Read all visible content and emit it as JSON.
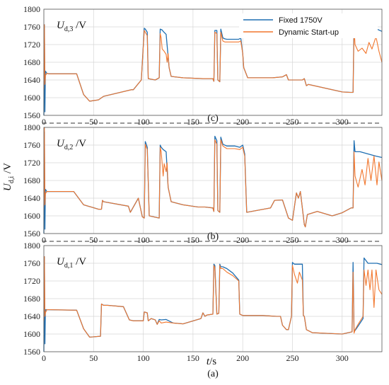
{
  "figure": {
    "ylabel_main": "U",
    "ylabel_sub": "d,i",
    "ylabel_unit": " /V",
    "xlabel_main": "t",
    "xlabel_unit": "/s"
  },
  "legend": [
    {
      "label": "Fixed 1750V",
      "color": "#1f6fb2"
    },
    {
      "label": "Dynamic Start-up",
      "color": "#f2772e"
    }
  ],
  "chart_data": [
    {
      "type": "line",
      "caption": "(c)",
      "title_main": "U",
      "title_sub": "d,3",
      "title_unit": " /V",
      "xlim": [
        0,
        340
      ],
      "ylim": [
        1560,
        1800
      ],
      "xticks": [
        0,
        50,
        100,
        150,
        200,
        250,
        300
      ],
      "yticks": [
        1560,
        1600,
        1640,
        1680,
        1720,
        1760,
        1800
      ],
      "grid": true,
      "series": [
        {
          "name": "Fixed 1750V",
          "color": "#1f6fb2",
          "x": [
            0,
            0.6,
            1.1,
            1.6,
            3,
            5,
            33,
            40,
            46,
            55,
            60,
            88,
            90,
            98,
            101,
            102,
            104,
            105,
            112,
            116,
            117,
            119,
            120,
            123,
            126,
            128,
            140,
            160,
            170,
            171,
            172,
            174,
            175,
            177,
            178,
            180,
            182,
            184,
            190,
            196,
            198,
            200,
            201,
            205,
            220,
            230,
            240,
            244,
            246,
            260,
            262,
            264,
            266,
            300,
            308,
            311,
            312,
            313,
            318,
            328,
            332,
            340
          ],
          "y": [
            1560,
            1765,
            1568,
            1660,
            1655,
            1654,
            1654,
            1607,
            1592,
            1595,
            1603,
            1618,
            1618,
            1640,
            1757,
            1755,
            1748,
            1643,
            1640,
            1645,
            1755,
            1753,
            1750,
            1743,
            1668,
            1648,
            1645,
            1643,
            1643,
            1637,
            1752,
            1752,
            1640,
            1636,
            1755,
            1735,
            1733,
            1732,
            1732,
            1732,
            1735,
            1700,
            1668,
            1645,
            1645,
            1645,
            1647,
            1652,
            1640,
            1640,
            1643,
            1627,
            1630,
            1613,
            1612,
            1612,
            1775,
            1760,
            1758,
            1758,
            1758,
            1750
          ]
        },
        {
          "name": "Dynamic Start-up",
          "color": "#f2772e",
          "x": [
            0,
            0.6,
            1.1,
            1.6,
            3,
            5,
            33,
            40,
            46,
            55,
            60,
            88,
            90,
            98,
            101,
            102,
            104,
            105,
            112,
            116,
            117,
            118,
            119,
            121,
            123,
            124,
            125,
            126,
            128,
            140,
            160,
            170,
            171,
            172,
            174,
            175,
            177,
            178,
            180,
            182,
            184,
            190,
            196,
            198,
            200,
            201,
            205,
            220,
            230,
            240,
            244,
            246,
            260,
            262,
            264,
            266,
            300,
            308,
            311,
            312,
            313,
            316,
            320,
            324,
            327,
            330,
            334,
            337,
            340
          ],
          "y": [
            1620,
            1765,
            1630,
            1650,
            1655,
            1654,
            1654,
            1607,
            1592,
            1595,
            1603,
            1618,
            1618,
            1640,
            1752,
            1748,
            1740,
            1643,
            1640,
            1645,
            1745,
            1735,
            1710,
            1705,
            1698,
            1680,
            1700,
            1668,
            1648,
            1645,
            1643,
            1643,
            1637,
            1748,
            1745,
            1640,
            1636,
            1748,
            1728,
            1726,
            1726,
            1726,
            1726,
            1728,
            1700,
            1668,
            1645,
            1645,
            1645,
            1647,
            1652,
            1640,
            1640,
            1643,
            1627,
            1630,
            1613,
            1612,
            1612,
            1760,
            1720,
            1705,
            1712,
            1700,
            1725,
            1710,
            1738,
            1705,
            1680
          ]
        }
      ]
    },
    {
      "type": "line",
      "caption": "(b)",
      "title_main": "U",
      "title_sub": "d,2",
      "title_unit": " /V",
      "xlim": [
        0,
        340
      ],
      "ylim": [
        1560,
        1800
      ],
      "xticks": [
        0,
        50,
        100,
        150,
        200,
        250,
        300
      ],
      "yticks": [
        1560,
        1600,
        1640,
        1680,
        1720,
        1760,
        1800
      ],
      "grid": true,
      "series": [
        {
          "name": "Fixed 1750V",
          "color": "#1f6fb2",
          "x": [
            0,
            0.6,
            1.1,
            1.6,
            3,
            5,
            30,
            40,
            55,
            58,
            59,
            60,
            85,
            87,
            95,
            99,
            101,
            102,
            103,
            104,
            106,
            116,
            117,
            118,
            120,
            123,
            125,
            128,
            140,
            155,
            162,
            170,
            171,
            172,
            174,
            175,
            177,
            178,
            180,
            184,
            192,
            197,
            200,
            202,
            204,
            228,
            232,
            240,
            246,
            250,
            254,
            256,
            258,
            262,
            263,
            265,
            275,
            290,
            300,
            309,
            311,
            312,
            313,
            318,
            326,
            334,
            340
          ],
          "y": [
            1560,
            1790,
            1570,
            1660,
            1655,
            1655,
            1655,
            1625,
            1615,
            1615,
            1635,
            1632,
            1622,
            1608,
            1640,
            1598,
            1595,
            1768,
            1762,
            1755,
            1600,
            1595,
            1760,
            1755,
            1750,
            1745,
            1665,
            1632,
            1625,
            1620,
            1620,
            1618,
            1610,
            1780,
            1770,
            1612,
            1608,
            1778,
            1762,
            1758,
            1758,
            1755,
            1760,
            1740,
            1608,
            1618,
            1635,
            1636,
            1595,
            1590,
            1652,
            1640,
            1655,
            1580,
            1575,
            1603,
            1610,
            1600,
            1607,
            1618,
            1618,
            1770,
            1745,
            1745,
            1740,
            1735,
            1732
          ]
        },
        {
          "name": "Dynamic Start-up",
          "color": "#f2772e",
          "x": [
            0,
            0.6,
            1.1,
            1.6,
            3,
            5,
            30,
            40,
            55,
            58,
            59,
            60,
            85,
            87,
            95,
            99,
            101,
            102,
            103,
            104,
            106,
            116,
            117,
            118,
            120,
            121,
            123,
            124,
            125,
            128,
            140,
            155,
            162,
            170,
            171,
            172,
            174,
            175,
            177,
            178,
            180,
            184,
            192,
            197,
            200,
            202,
            204,
            228,
            232,
            240,
            246,
            250,
            254,
            256,
            258,
            262,
            263,
            265,
            275,
            290,
            300,
            309,
            311,
            312,
            313,
            316,
            320,
            323,
            326,
            329,
            332,
            335,
            337,
            340
          ],
          "y": [
            1620,
            1800,
            1625,
            1650,
            1655,
            1655,
            1655,
            1625,
            1615,
            1615,
            1635,
            1632,
            1622,
            1608,
            1640,
            1598,
            1595,
            1762,
            1755,
            1750,
            1600,
            1595,
            1755,
            1745,
            1690,
            1718,
            1700,
            1720,
            1665,
            1632,
            1625,
            1620,
            1620,
            1618,
            1610,
            1772,
            1762,
            1612,
            1608,
            1772,
            1758,
            1752,
            1752,
            1750,
            1755,
            1735,
            1608,
            1618,
            1635,
            1636,
            1595,
            1590,
            1652,
            1640,
            1655,
            1580,
            1575,
            1603,
            1610,
            1600,
            1607,
            1618,
            1618,
            1745,
            1690,
            1665,
            1705,
            1670,
            1730,
            1680,
            1735,
            1670,
            1722,
            1680
          ]
        }
      ]
    },
    {
      "type": "line",
      "caption": "(a)",
      "title_main": "U",
      "title_sub": "d,1",
      "title_unit": " /V",
      "xlim": [
        0,
        340
      ],
      "ylim": [
        1560,
        1800
      ],
      "xticks": [
        0,
        50,
        100,
        150,
        200,
        250,
        300,
        350
      ],
      "xtick_labels": [
        "0",
        "50",
        "100",
        "150",
        "200",
        "250",
        "300",
        ""
      ],
      "yticks": [
        1560,
        1600,
        1640,
        1680,
        1720,
        1760,
        1800
      ],
      "grid": true,
      "series": [
        {
          "name": "Fixed 1750V",
          "color": "#1f6fb2",
          "x": [
            0,
            0.6,
            1.1,
            1.6,
            3,
            5,
            33,
            40,
            46,
            57,
            58,
            60,
            64,
            80,
            86,
            90,
            100,
            101,
            104,
            105,
            108,
            112,
            114,
            116,
            118,
            123,
            130,
            140,
            158,
            160,
            162,
            164,
            170,
            171,
            172,
            174,
            176,
            177,
            178,
            180,
            184,
            190,
            196,
            197,
            200,
            220,
            234,
            238,
            240,
            244,
            246,
            249,
            250,
            252,
            260,
            261,
            262,
            264,
            270,
            300,
            310,
            311,
            312,
            313,
            316,
            321,
            322,
            326,
            335,
            340
          ],
          "y": [
            1560,
            1775,
            1578,
            1655,
            1655,
            1655,
            1654,
            1612,
            1593,
            1595,
            1668,
            1665,
            1665,
            1662,
            1632,
            1630,
            1630,
            1650,
            1648,
            1630,
            1635,
            1632,
            1622,
            1633,
            1632,
            1633,
            1625,
            1623,
            1635,
            1648,
            1640,
            1643,
            1645,
            1758,
            1755,
            1645,
            1647,
            1758,
            1752,
            1752,
            1748,
            1738,
            1722,
            1645,
            1642,
            1642,
            1640,
            1640,
            1620,
            1610,
            1610,
            1640,
            1762,
            1758,
            1758,
            1642,
            1640,
            1610,
            1603,
            1600,
            1605,
            1762,
            1605,
            1608,
            1618,
            1635,
            1772,
            1760,
            1760,
            1757
          ]
        },
        {
          "name": "Dynamic Start-up",
          "color": "#f2772e",
          "x": [
            0,
            0.6,
            1.1,
            1.6,
            3,
            5,
            33,
            40,
            46,
            57,
            58,
            60,
            64,
            80,
            86,
            90,
            100,
            101,
            104,
            105,
            108,
            112,
            114,
            116,
            118,
            123,
            130,
            140,
            158,
            160,
            162,
            164,
            170,
            171,
            172,
            174,
            176,
            177,
            178,
            180,
            184,
            190,
            196,
            197,
            200,
            220,
            234,
            238,
            240,
            244,
            246,
            249,
            250,
            252,
            255,
            257,
            260,
            261,
            262,
            264,
            270,
            300,
            310,
            311,
            312,
            313,
            316,
            321,
            322,
            324,
            326,
            328,
            330,
            332,
            334,
            337,
            340
          ],
          "y": [
            1630,
            1775,
            1640,
            1648,
            1655,
            1655,
            1654,
            1612,
            1593,
            1595,
            1668,
            1665,
            1665,
            1662,
            1632,
            1630,
            1630,
            1650,
            1648,
            1630,
            1635,
            1632,
            1622,
            1630,
            1625,
            1627,
            1625,
            1623,
            1635,
            1648,
            1640,
            1643,
            1645,
            1755,
            1750,
            1645,
            1647,
            1755,
            1748,
            1748,
            1740,
            1732,
            1720,
            1645,
            1642,
            1642,
            1640,
            1640,
            1620,
            1610,
            1610,
            1640,
            1755,
            1735,
            1715,
            1740,
            1722,
            1642,
            1640,
            1610,
            1603,
            1600,
            1605,
            1740,
            1602,
            1610,
            1622,
            1640,
            1745,
            1710,
            1745,
            1700,
            1745,
            1660,
            1745,
            1700,
            1690
          ]
        }
      ]
    }
  ]
}
